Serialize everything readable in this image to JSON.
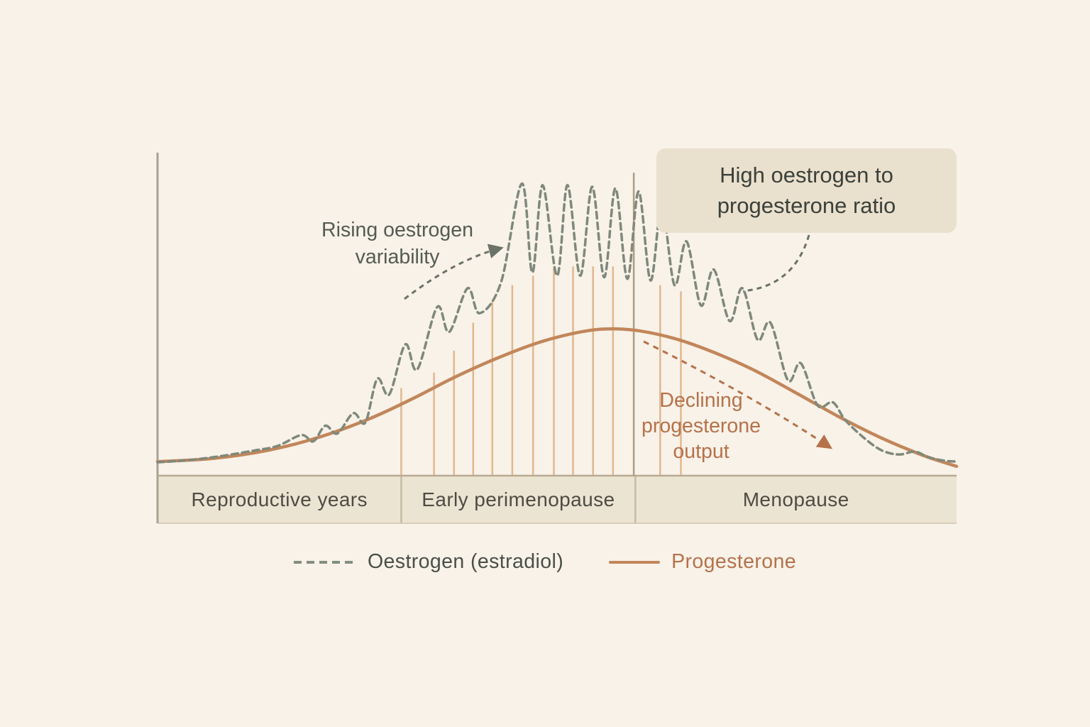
{
  "chart_data": {
    "type": "line",
    "title": "",
    "description": "Hormone levels across the menopause transition",
    "x_axis": {
      "label": "",
      "range": [
        0,
        100
      ],
      "unit": "relative time across life stages",
      "ticks": []
    },
    "y_axis": {
      "label": "",
      "range": [
        0,
        100
      ],
      "unit": "relative hormone level",
      "ticks": []
    },
    "grid": false,
    "legend_position": "bottom",
    "sections": [
      {
        "label": "Reproductive years",
        "x_start": 0,
        "x_end": 30.5
      },
      {
        "label": "Early perimenopause",
        "x_start": 30.5,
        "x_end": 59.8
      },
      {
        "label": "Menopause",
        "x_start": 59.8,
        "x_end": 100
      }
    ],
    "series": [
      {
        "name": "Oestrogen (estradiol)",
        "style": "dashed",
        "color": "#7f897b",
        "points": [
          [
            0,
            4.3
          ],
          [
            4,
            5
          ],
          [
            8,
            6.3
          ],
          [
            12,
            8
          ],
          [
            15,
            9.5
          ],
          [
            18,
            13
          ],
          [
            19.5,
            11
          ],
          [
            21,
            16
          ],
          [
            22.5,
            13.5
          ],
          [
            24.5,
            20
          ],
          [
            26,
            17
          ],
          [
            27.5,
            31
          ],
          [
            29,
            26
          ],
          [
            31,
            42
          ],
          [
            32.5,
            34
          ],
          [
            35,
            54
          ],
          [
            36.5,
            46
          ],
          [
            38.8,
            60
          ],
          [
            40.3,
            52
          ],
          [
            43,
            62
          ],
          [
            45.6,
            93.5
          ],
          [
            46.9,
            65
          ],
          [
            48.2,
            93
          ],
          [
            50,
            64
          ],
          [
            51.3,
            93
          ],
          [
            52.9,
            64
          ],
          [
            54.4,
            92.5
          ],
          [
            55.9,
            63.5
          ],
          [
            57.3,
            92
          ],
          [
            58.8,
            63
          ],
          [
            60.2,
            91
          ],
          [
            61.7,
            62.5
          ],
          [
            63.1,
            86
          ],
          [
            64.7,
            61
          ],
          [
            66.2,
            75
          ],
          [
            68,
            54.5
          ],
          [
            69.6,
            66
          ],
          [
            71.6,
            49.5
          ],
          [
            73.2,
            60
          ],
          [
            75.1,
            43.5
          ],
          [
            76.7,
            49
          ],
          [
            78.9,
            30.5
          ],
          [
            80.5,
            36
          ],
          [
            82.6,
            22.5
          ],
          [
            84.5,
            23.5
          ],
          [
            86,
            18
          ],
          [
            88,
            13
          ],
          [
            90,
            9
          ],
          [
            91.5,
            7.3
          ],
          [
            93,
            6.8
          ],
          [
            94.8,
            7.7
          ],
          [
            96.5,
            5.9
          ],
          [
            98.5,
            4.8
          ],
          [
            100,
            4.5
          ]
        ]
      },
      {
        "name": "Progesterone",
        "style": "solid",
        "color": "#c2865a",
        "points": [
          [
            0,
            4.5
          ],
          [
            6.9,
            5.5
          ],
          [
            14,
            8.2
          ],
          [
            20.2,
            12.3
          ],
          [
            26.5,
            18.2
          ],
          [
            31.8,
            24.5
          ],
          [
            37.1,
            31.4
          ],
          [
            42.4,
            37.5
          ],
          [
            47.8,
            42.7
          ],
          [
            53.1,
            46.1
          ],
          [
            56.7,
            47
          ],
          [
            60.2,
            46.4
          ],
          [
            64.7,
            43.9
          ],
          [
            69.1,
            40
          ],
          [
            74.4,
            34.1
          ],
          [
            79.7,
            26.8
          ],
          [
            85.1,
            19.1
          ],
          [
            90.4,
            12.3
          ],
          [
            95.7,
            6.6
          ],
          [
            100,
            3
          ]
        ]
      }
    ],
    "cycle_marker_lines": {
      "color": "#e0b184",
      "lines": [
        [
          30.5,
          28
        ],
        [
          34.6,
          33
        ],
        [
          37.1,
          40
        ],
        [
          39.5,
          49
        ],
        [
          41.9,
          56
        ],
        [
          44.4,
          61
        ],
        [
          47,
          64
        ],
        [
          49.6,
          66.5
        ],
        [
          52,
          67
        ],
        [
          54.5,
          67
        ],
        [
          57,
          67
        ],
        [
          62.9,
          61
        ],
        [
          65.5,
          59
        ]
      ]
    },
    "stage_divider": {
      "x": 59.6,
      "level_top": 97,
      "color": "#a5947a"
    }
  },
  "annotations": {
    "rising_oestrogen": {
      "lines": [
        "Rising oestrogen",
        "variability"
      ],
      "color": "#555c52"
    },
    "high_ratio": {
      "lines": [
        "High oestrogen to",
        "progesterone ratio"
      ],
      "background": "#e9e0cd",
      "color": "#3b403a"
    },
    "declining_progesterone": {
      "lines": [
        "Declining",
        "progesterone",
        "output"
      ],
      "color": "#b5724a"
    }
  },
  "legend": {
    "items": [
      {
        "label": "Oestrogen (estradiol)",
        "color": "#7f897b",
        "swatch": "dashed-line",
        "text_color": "#4a5047"
      },
      {
        "label": "Progesterone",
        "color": "#c2865a",
        "swatch": "solid-line",
        "text_color": "#b5724a"
      }
    ]
  },
  "colors": {
    "background": "#f8f2e9",
    "band": "#ece4d3",
    "band_divider": "#c6bba3",
    "axis": "#a8a192",
    "baseline": "#b9ab91",
    "band_bottom": "#d9ceb9",
    "arrow_gray": "#6b7268",
    "arrow_orange": "#b5724a"
  }
}
